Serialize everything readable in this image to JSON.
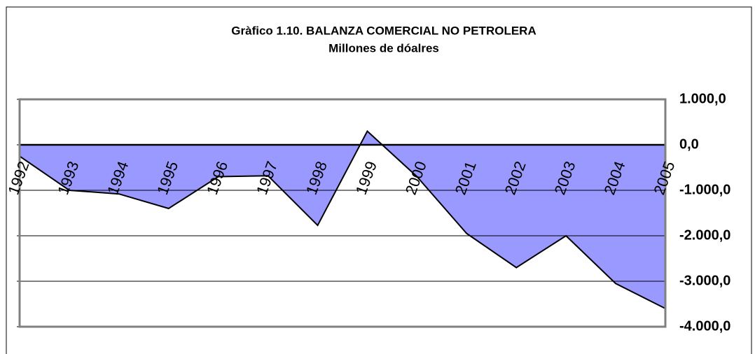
{
  "chart_data": {
    "type": "area",
    "title": "Gràfico 1.10. BALANZA COMERCIAL NO PETROLERA",
    "subtitle": "Millones de dóalres",
    "categories": [
      "1992",
      "1993",
      "1994",
      "1995",
      "1996",
      "1997",
      "1998",
      "1999",
      "2000",
      "2001",
      "2002",
      "2003",
      "2004",
      "2005"
    ],
    "series": [
      {
        "name": "Balanza comercial no petrolera",
        "color": "#9999ff",
        "values": [
          -250,
          -1000,
          -1080,
          -1400,
          -700,
          -680,
          -1770,
          300,
          -700,
          -1950,
          -2700,
          -2000,
          -3050,
          -3600
        ]
      }
    ],
    "ylim": [
      -4000,
      1000
    ],
    "yticks": [
      {
        "value": -4000,
        "label": "-4.000,0"
      },
      {
        "value": -3000,
        "label": "-3.000,0"
      },
      {
        "value": -2000,
        "label": "-2.000,0"
      },
      {
        "value": -1000,
        "label": "-1.000,0"
      },
      {
        "value": 0,
        "label": "0,0"
      },
      {
        "value": 1000,
        "label": "1.000,0"
      }
    ],
    "grid": true
  }
}
